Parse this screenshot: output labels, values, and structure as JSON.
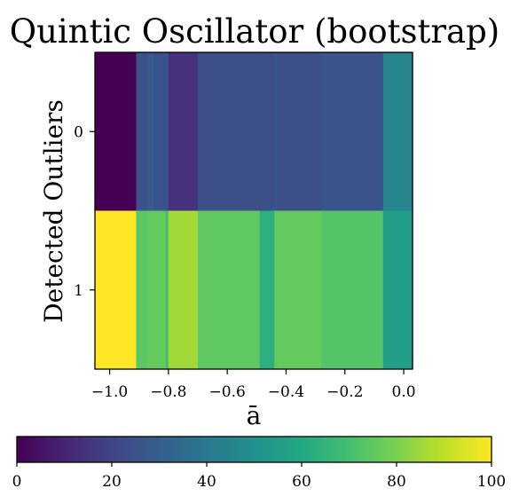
{
  "chart_data": {
    "type": "heatmap",
    "title": "Quintic Oscillator (bootstrap)",
    "xlabel": "ā",
    "ylabel": "Detected Outliers",
    "x_edges": [
      -1.05,
      -0.91,
      -0.87,
      -0.85,
      -0.81,
      -0.8,
      -0.7,
      -0.61,
      -0.5,
      -0.49,
      -0.44,
      -0.43,
      -0.33,
      -0.28,
      -0.2,
      -0.19,
      -0.07,
      0.03
    ],
    "xlim": [
      -1.05,
      0.03
    ],
    "xticks": [
      -1.0,
      -0.8,
      -0.6,
      -0.4,
      -0.2,
      0.0
    ],
    "xtick_labels": [
      "−1.0",
      "−0.8",
      "−0.6",
      "−0.4",
      "−0.2",
      "0.0"
    ],
    "rows": [
      0,
      1
    ],
    "ytick_labels": [
      "0",
      "1"
    ],
    "values": [
      [
        0,
        25,
        29,
        25,
        25,
        14,
        24,
        24,
        24,
        24,
        25,
        24,
        24,
        26,
        26,
        26,
        45
      ],
      [
        100,
        74,
        76,
        76,
        70,
        86,
        75,
        75,
        75,
        63,
        75,
        76,
        76,
        73,
        73,
        73,
        55
      ]
    ],
    "colormap": "viridis",
    "colorbar": {
      "orientation": "horizontal",
      "location": "bottom",
      "range": [
        0,
        100
      ],
      "ticks": [
        0,
        20,
        40,
        60,
        80,
        100
      ],
      "tick_labels": [
        "0",
        "20",
        "40",
        "60",
        "80",
        "100"
      ]
    },
    "grid": false
  }
}
